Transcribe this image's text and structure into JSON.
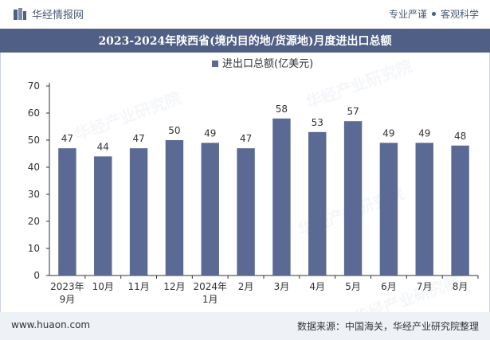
{
  "header": {
    "brand_name": "华经情报网",
    "tagline_left": "专业严谨",
    "tagline_right": "客观科学"
  },
  "title": "2023-2024年陕西省(境内目的地/货源地)月度进出口总额",
  "watermarks": [
    "华经产业研究院",
    "www.huaon.com"
  ],
  "footer": {
    "website": "www.huaon.com",
    "source": "数据来源：中国海关，华经产业研究院整理"
  },
  "colors": {
    "bar": "#5a6a94",
    "title_band": "#4f5f85",
    "footer_band": "#eef1f6"
  },
  "chart_data": {
    "type": "bar",
    "categories": [
      [
        "2023年",
        "9月"
      ],
      [
        "10月"
      ],
      [
        "11月"
      ],
      [
        "12月"
      ],
      [
        "2024年",
        "1月"
      ],
      [
        "2月"
      ],
      [
        "3月"
      ],
      [
        "4月"
      ],
      [
        "5月"
      ],
      [
        "6月"
      ],
      [
        "7月"
      ],
      [
        "8月"
      ]
    ],
    "series": [
      {
        "name": "进出口总额(亿美元)",
        "values": [
          47,
          44,
          47,
          50,
          49,
          47,
          58,
          53,
          57,
          49,
          49,
          48
        ]
      }
    ],
    "ylim": [
      0,
      70
    ],
    "yticks": [
      0,
      10,
      20,
      30,
      40,
      50,
      60,
      70
    ],
    "legend_position": "top-center",
    "grid": false
  }
}
